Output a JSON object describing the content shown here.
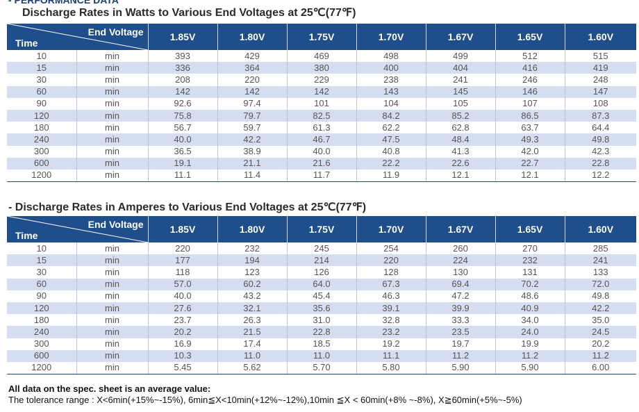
{
  "top_title": "- PERFORMANCE DATA",
  "watts": {
    "title": "Discharge Rates in Watts to Various End Voltages at 25℃(77℉)",
    "corner_top": "End Voltage",
    "corner_bottom": "Time",
    "columns": [
      "1.85V",
      "1.80V",
      "1.75V",
      "1.70V",
      "1.67V",
      "1.65V",
      "1.60V"
    ],
    "rows": [
      {
        "time": "10",
        "unit": "min",
        "values": [
          "393",
          "429",
          "469",
          "498",
          "499",
          "512",
          "515"
        ]
      },
      {
        "time": "15",
        "unit": "min",
        "values": [
          "336",
          "364",
          "380",
          "400",
          "404",
          "416",
          "419"
        ]
      },
      {
        "time": "30",
        "unit": "min",
        "values": [
          "208",
          "220",
          "229",
          "238",
          "241",
          "246",
          "248"
        ]
      },
      {
        "time": "60",
        "unit": "min",
        "values": [
          "142",
          "142",
          "142",
          "143",
          "145",
          "146",
          "147"
        ]
      },
      {
        "time": "90",
        "unit": "min",
        "values": [
          "92.6",
          "97.4",
          "101",
          "104",
          "105",
          "107",
          "108"
        ]
      },
      {
        "time": "120",
        "unit": "min",
        "values": [
          "75.8",
          "79.7",
          "82.5",
          "84.2",
          "85.2",
          "86.5",
          "87.3"
        ]
      },
      {
        "time": "180",
        "unit": "min",
        "values": [
          "56.7",
          "59.7",
          "61.3",
          "62.2",
          "62.8",
          "63.7",
          "64.4"
        ]
      },
      {
        "time": "240",
        "unit": "min",
        "values": [
          "40.0",
          "42.2",
          "46.7",
          "47.5",
          "48.4",
          "49.3",
          "49.8"
        ]
      },
      {
        "time": "300",
        "unit": "min",
        "values": [
          "36.5",
          "38.9",
          "40.0",
          "40.8",
          "41.3",
          "42.0",
          "42.3"
        ]
      },
      {
        "time": "600",
        "unit": "min",
        "values": [
          "19.1",
          "21.1",
          "21.6",
          "22.2",
          "22.6",
          "22.7",
          "22.8"
        ]
      },
      {
        "time": "1200",
        "unit": "min",
        "values": [
          "11.1",
          "11.4",
          "11.7",
          "11.9",
          "12.1",
          "12.1",
          "12.2"
        ]
      }
    ]
  },
  "amperes": {
    "title": "- Discharge Rates in Amperes to Various End Voltages at 25℃(77℉)",
    "corner_top": "End Voltage",
    "corner_bottom": "Time",
    "columns": [
      "1.85V",
      "1.80V",
      "1.75V",
      "1.70V",
      "1.67V",
      "1.65V",
      "1.60V"
    ],
    "rows": [
      {
        "time": "10",
        "unit": "min",
        "values": [
          "220",
          "232",
          "245",
          "254",
          "260",
          "270",
          "285"
        ]
      },
      {
        "time": "15",
        "unit": "min",
        "values": [
          "177",
          "194",
          "214",
          "220",
          "224",
          "232",
          "241"
        ]
      },
      {
        "time": "30",
        "unit": "min",
        "values": [
          "118",
          "123",
          "126",
          "128",
          "130",
          "131",
          "133"
        ]
      },
      {
        "time": "60",
        "unit": "min",
        "values": [
          "57.0",
          "60.2",
          "64.0",
          "67.3",
          "69.4",
          "70.2",
          "72.0"
        ]
      },
      {
        "time": "90",
        "unit": "min",
        "values": [
          "40.0",
          "43.2",
          "45.4",
          "46.3",
          "47.2",
          "48.6",
          "49.8"
        ]
      },
      {
        "time": "120",
        "unit": "min",
        "values": [
          "27.6",
          "32.1",
          "35.6",
          "39.1",
          "39.9",
          "40.9",
          "42.2"
        ]
      },
      {
        "time": "180",
        "unit": "min",
        "values": [
          "23.7",
          "26.3",
          "31.0",
          "32.8",
          "33.3",
          "34.0",
          "35.0"
        ]
      },
      {
        "time": "240",
        "unit": "min",
        "values": [
          "20.2",
          "21.5",
          "22.8",
          "23.2",
          "23.5",
          "24.0",
          "24.5"
        ]
      },
      {
        "time": "300",
        "unit": "min",
        "values": [
          "16.9",
          "17.4",
          "18.5",
          "19.2",
          "19.7",
          "19.9",
          "20.2"
        ]
      },
      {
        "time": "600",
        "unit": "min",
        "values": [
          "10.3",
          "11.0",
          "11.0",
          "11.1",
          "11.2",
          "11.2",
          "11.2"
        ]
      },
      {
        "time": "1200",
        "unit": "min",
        "values": [
          "5.45",
          "5.62",
          "5.70",
          "5.80",
          "5.90",
          "5.90",
          "6.00"
        ]
      }
    ]
  },
  "note": {
    "heading": "All data on the spec. sheet is an average value:",
    "tolerance": "The tolerance range : X<6min(+15%~-15%), 6min≦X<10min(+12%~-12%),10min ≦X < 60min(+8% ~-8%), X≧60min(+5%~-5%)"
  },
  "colors": {
    "header_bg": "#1f4e8c",
    "stripe": "#d5ddf0",
    "title": "#2a2a2a"
  }
}
